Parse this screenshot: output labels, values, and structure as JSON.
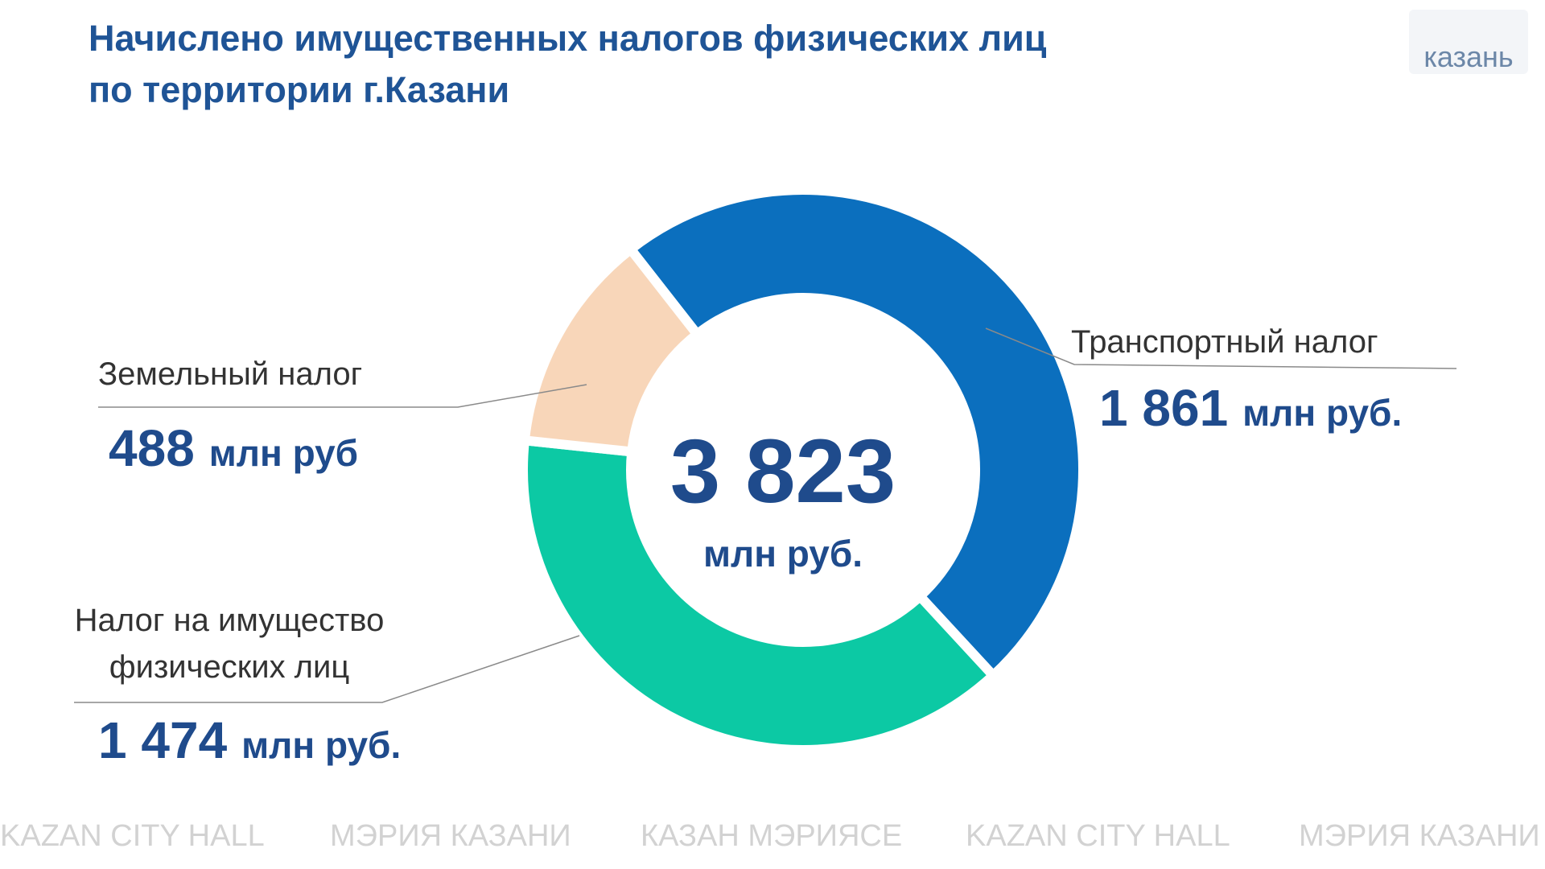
{
  "chart_data": {
    "type": "pie",
    "title": [
      "Начислено имущественных налогов физических лиц",
      "по территории г.Казани"
    ],
    "categories": [
      "Транспортный налог",
      "Налог на имущество физических лиц",
      "Земельный налог"
    ],
    "values": [
      1861,
      1474,
      488
    ],
    "value_labels": [
      "1 861",
      "1 474",
      "488"
    ],
    "units": [
      "млн руб.",
      "млн руб.",
      "млн руб"
    ],
    "colors": [
      "#0b6fbe",
      "#0cc9a4",
      "#f8d6b9"
    ],
    "total": {
      "value": 3823,
      "label": "3 823",
      "unit": "млн руб."
    }
  },
  "logo": "казань",
  "watermark": [
    "KAZAN CITY HALL",
    "МЭРИЯ КАЗАНИ",
    "КАЗАН МЭРИЯСЕ",
    "KAZAN CITY HALL",
    "МЭРИЯ КАЗАНИ"
  ]
}
